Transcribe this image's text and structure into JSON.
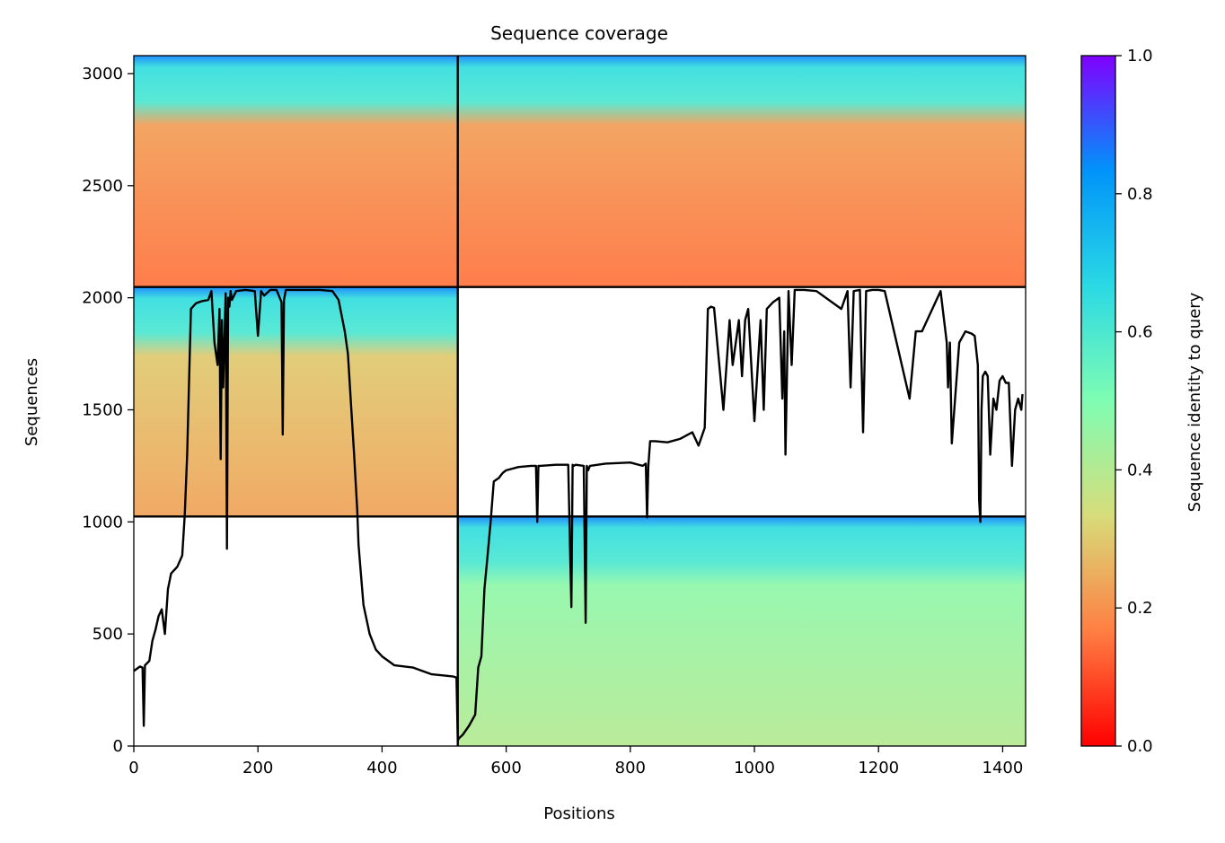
{
  "chart_data": {
    "type": "heatmap",
    "title": "Sequence coverage",
    "xlabel": "Positions",
    "ylabel": "Sequences",
    "xlim": [
      0,
      1437
    ],
    "ylim": [
      0,
      3080
    ],
    "x_ticks": [
      0,
      200,
      400,
      600,
      800,
      1000,
      1200,
      1400
    ],
    "y_ticks": [
      0,
      500,
      1000,
      1500,
      2000,
      2500,
      3000
    ],
    "colorbar": {
      "label": "Sequence identity to query",
      "range": [
        0,
        1
      ],
      "ticks": [
        "0.0",
        "0.2",
        "0.4",
        "0.6",
        "0.8",
        "1.0"
      ],
      "colormap": "rainbow_r",
      "stops": [
        "#ff0000",
        "#ff7f43",
        "#d7dc7a",
        "#7ffdb3",
        "#2ad9e4",
        "#0094fa",
        "#8000ff"
      ]
    },
    "dividers": {
      "x": [
        522
      ],
      "y": [
        1024,
        2048
      ]
    },
    "blocks": [
      {
        "name": "chain-A-alignment",
        "x": [
          0,
          522
        ],
        "y": [
          2048,
          3080
        ],
        "identity": 0.2,
        "header_identity": 0.65
      },
      {
        "name": "chain-B-alignment",
        "x": [
          522,
          1437
        ],
        "y": [
          2048,
          3080
        ],
        "identity": 0.2,
        "header_identity": 0.65
      },
      {
        "name": "chain-A-paired",
        "x": [
          0,
          522
        ],
        "y": [
          1024,
          2048
        ],
        "identity": 0.28,
        "header_identity": 0.65
      },
      {
        "name": "chain-B-unpaired",
        "x": [
          522,
          1437
        ],
        "y": [
          0,
          1024
        ],
        "identity": 0.45,
        "header_identity": 0.65
      }
    ],
    "coverage_line": {
      "x": [
        0,
        10,
        14,
        16,
        18,
        25,
        30,
        35,
        40,
        45,
        50,
        55,
        60,
        70,
        78,
        82,
        86,
        92,
        100,
        110,
        120,
        125,
        130,
        135,
        138,
        140,
        142,
        144,
        148,
        150,
        152,
        154,
        156,
        158,
        165,
        180,
        195,
        200,
        205,
        210,
        220,
        230,
        238,
        240,
        242,
        245,
        250,
        270,
        300,
        320,
        330,
        340,
        345,
        350,
        355,
        360,
        362,
        365,
        370,
        380,
        390,
        400,
        420,
        450,
        480,
        500,
        515,
        520,
        522,
        524,
        530,
        540,
        550,
        555,
        560,
        565,
        570,
        575,
        580,
        585,
        588,
        592,
        595,
        600,
        620,
        640,
        648,
        650,
        652,
        655,
        680,
        700,
        705,
        707,
        709,
        712,
        725,
        728,
        730,
        732,
        735,
        760,
        800,
        820,
        825,
        827,
        829,
        832,
        840,
        860,
        880,
        900,
        910,
        920,
        925,
        930,
        935,
        950,
        960,
        965,
        970,
        975,
        980,
        985,
        990,
        1000,
        1010,
        1015,
        1020,
        1030,
        1040,
        1045,
        1048,
        1050,
        1055,
        1060,
        1065,
        1070,
        1080,
        1100,
        1140,
        1150,
        1155,
        1160,
        1170,
        1175,
        1180,
        1190,
        1200,
        1210,
        1250,
        1260,
        1270,
        1300,
        1310,
        1312,
        1315,
        1318,
        1330,
        1340,
        1350,
        1355,
        1360,
        1362,
        1364,
        1366,
        1368,
        1372,
        1376,
        1380,
        1385,
        1390,
        1395,
        1400,
        1405,
        1410,
        1415,
        1420,
        1425,
        1430,
        1432,
        1434,
        1437
      ],
      "y": [
        335,
        355,
        350,
        90,
        360,
        380,
        470,
        520,
        580,
        610,
        500,
        700,
        770,
        800,
        850,
        1030,
        1300,
        1950,
        1975,
        1985,
        1990,
        2030,
        1800,
        1700,
        1950,
        1280,
        1900,
        1600,
        2020,
        880,
        2000,
        1960,
        2030,
        1990,
        2030,
        2035,
        2030,
        1830,
        2030,
        2010,
        2035,
        2035,
        1980,
        1390,
        1990,
        2035,
        2035,
        2035,
        2035,
        2030,
        1990,
        1850,
        1750,
        1520,
        1300,
        1050,
        900,
        800,
        630,
        500,
        430,
        400,
        360,
        350,
        320,
        315,
        310,
        305,
        25,
        35,
        50,
        90,
        140,
        350,
        400,
        700,
        850,
        1000,
        1180,
        1190,
        1195,
        1210,
        1220,
        1230,
        1245,
        1250,
        1250,
        1000,
        1250,
        1250,
        1255,
        1255,
        620,
        1255,
        1250,
        1255,
        1250,
        550,
        1250,
        1230,
        1250,
        1260,
        1265,
        1250,
        1260,
        1020,
        1250,
        1360,
        1360,
        1355,
        1370,
        1400,
        1340,
        1420,
        1950,
        1960,
        1955,
        1500,
        1900,
        1700,
        1800,
        1900,
        1650,
        1900,
        1950,
        1450,
        1900,
        1500,
        1950,
        1980,
        2000,
        1550,
        1850,
        1300,
        2030,
        1700,
        2035,
        2035,
        2035,
        2030,
        1950,
        2030,
        1600,
        2030,
        2035,
        1400,
        2030,
        2035,
        2035,
        2030,
        1550,
        1850,
        1850,
        2030,
        1800,
        1600,
        1800,
        1350,
        1800,
        1850,
        1840,
        1830,
        1700,
        1100,
        1000,
        1500,
        1650,
        1670,
        1650,
        1300,
        1550,
        1500,
        1630,
        1650,
        1620,
        1620,
        1250,
        1500,
        1550,
        1500,
        1570
      ]
    }
  }
}
